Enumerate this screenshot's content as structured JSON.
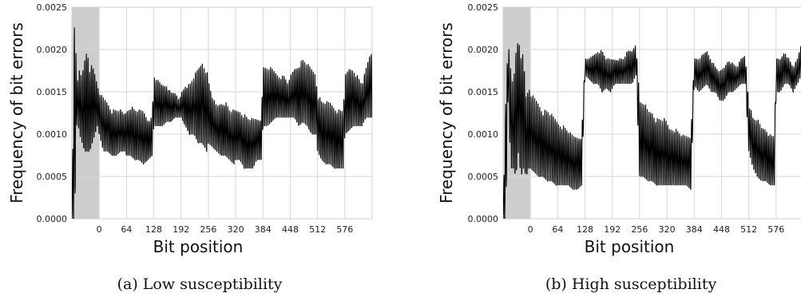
{
  "chart_data": [
    {
      "type": "line",
      "caption": "(a) Low susceptibility",
      "xlabel": "Bit position",
      "ylabel": "Frequency of bit errors",
      "xlim": [
        -64,
        640
      ],
      "ylim": [
        0,
        0.0025
      ],
      "y_ticks": [
        "0.0000",
        "0.0005",
        "0.0010",
        "0.0015",
        "0.0020",
        "0.0025"
      ],
      "x_ticks": [
        "0",
        "64",
        "128",
        "192",
        "256",
        "320",
        "384",
        "448",
        "512",
        "576"
      ],
      "shaded_region": [
        -64,
        0
      ],
      "grid": true,
      "series": [
        {
          "x": [
            -64,
            -58,
            -52,
            -46,
            -40,
            -34,
            -28,
            -22,
            -16,
            -10,
            -4,
            0,
            10,
            20,
            30,
            40,
            50,
            60,
            64,
            74,
            84,
            94,
            104,
            114,
            124,
            128,
            138,
            148,
            158,
            168,
            178,
            188,
            192,
            202,
            212,
            222,
            232,
            242,
            252,
            256,
            266,
            276,
            286,
            296,
            306,
            316,
            320,
            330,
            340,
            350,
            360,
            370,
            380,
            384,
            394,
            404,
            414,
            424,
            434,
            444,
            448,
            458,
            468,
            478,
            488,
            498,
            508,
            512,
            522,
            532,
            542,
            552,
            562,
            572,
            576,
            586,
            596,
            606,
            616,
            626,
            636
          ],
          "upper": [
            0.0001,
            0.0025,
            0.0016,
            0.0018,
            0.0017,
            0.0019,
            0.00205,
            0.0018,
            0.00195,
            0.0017,
            0.0016,
            0.0015,
            0.00145,
            0.0014,
            0.0013,
            0.0013,
            0.0013,
            0.00125,
            0.0013,
            0.00135,
            0.0013,
            0.0013,
            0.0013,
            0.0012,
            0.0012,
            0.0017,
            0.00165,
            0.0016,
            0.0016,
            0.0015,
            0.0015,
            0.0014,
            0.0015,
            0.0016,
            0.0016,
            0.0017,
            0.0018,
            0.0019,
            0.0018,
            0.00165,
            0.00145,
            0.00135,
            0.0014,
            0.0014,
            0.0013,
            0.0013,
            0.0013,
            0.0013,
            0.00125,
            0.0012,
            0.0012,
            0.0012,
            0.0012,
            0.0018,
            0.0018,
            0.0018,
            0.00175,
            0.0017,
            0.0017,
            0.0016,
            0.0017,
            0.0018,
            0.00185,
            0.0019,
            0.00185,
            0.0018,
            0.00175,
            0.0015,
            0.0014,
            0.0014,
            0.0014,
            0.00135,
            0.0013,
            0.0013,
            0.0017,
            0.0018,
            0.0018,
            0.0017,
            0.0016,
            0.0018,
            0.002
          ],
          "lower": [
            0.0,
            0.0,
            0.0012,
            0.001,
            0.0009,
            0.0008,
            0.0008,
            0.0008,
            0.0009,
            0.001,
            0.0011,
            0.001,
            0.0008,
            0.0008,
            0.00075,
            0.00075,
            0.0008,
            0.0008,
            0.00075,
            0.00075,
            0.0007,
            0.0007,
            0.00065,
            0.0007,
            0.00075,
            0.0011,
            0.0011,
            0.0011,
            0.00115,
            0.00115,
            0.0012,
            0.0012,
            0.0012,
            0.0011,
            0.001,
            0.001,
            0.0009,
            0.0009,
            0.0008,
            0.0009,
            0.00085,
            0.0008,
            0.00075,
            0.00075,
            0.0007,
            0.00065,
            0.0007,
            0.0007,
            0.0006,
            0.0006,
            0.0006,
            0.0007,
            0.0007,
            0.0011,
            0.0011,
            0.00115,
            0.0012,
            0.0012,
            0.0012,
            0.0012,
            0.0012,
            0.0012,
            0.0011,
            0.00115,
            0.0011,
            0.001,
            0.001,
            0.0008,
            0.0007,
            0.00065,
            0.00065,
            0.0006,
            0.0006,
            0.0006,
            0.001,
            0.00105,
            0.0011,
            0.0011,
            0.0011,
            0.0012,
            0.0012
          ]
        }
      ]
    },
    {
      "type": "line",
      "caption": "(b) High susceptibility",
      "xlabel": "Bit position",
      "ylabel": "Frequency of bit errors",
      "xlim": [
        -64,
        640
      ],
      "ylim": [
        0,
        0.0025
      ],
      "y_ticks": [
        "0.0000",
        "0.0005",
        "0.0010",
        "0.0015",
        "0.0020",
        "0.0025"
      ],
      "x_ticks": [
        "0",
        "64",
        "128",
        "192",
        "256",
        "320",
        "384",
        "448",
        "512",
        "576"
      ],
      "shaded_region": [
        -64,
        0
      ],
      "grid": true,
      "series": [
        {
          "x": [
            -64,
            -58,
            -52,
            -46,
            -40,
            -34,
            -28,
            -22,
            -16,
            -10,
            -4,
            0,
            10,
            20,
            30,
            40,
            50,
            60,
            70,
            80,
            90,
            100,
            110,
            120,
            128,
            138,
            148,
            158,
            168,
            178,
            188,
            198,
            208,
            218,
            228,
            238,
            248,
            256,
            266,
            276,
            286,
            296,
            306,
            316,
            326,
            336,
            346,
            356,
            366,
            376,
            384,
            394,
            404,
            414,
            424,
            434,
            444,
            454,
            464,
            474,
            484,
            494,
            504,
            512,
            522,
            532,
            542,
            552,
            562,
            572,
            576,
            586,
            596,
            606,
            616,
            626,
            636
          ],
          "upper": [
            0.0001,
            0.0015,
            0.0021,
            0.0018,
            0.0016,
            0.002,
            0.0022,
            0.002,
            0.0021,
            0.0014,
            0.0016,
            0.0015,
            0.00145,
            0.0014,
            0.0013,
            0.0013,
            0.00125,
            0.0012,
            0.00115,
            0.0011,
            0.00105,
            0.001,
            0.001,
            0.001,
            0.0019,
            0.0019,
            0.00195,
            0.002,
            0.002,
            0.0019,
            0.0019,
            0.0019,
            0.0019,
            0.0019,
            0.002,
            0.002,
            0.0021,
            0.0014,
            0.0014,
            0.0013,
            0.0013,
            0.0012,
            0.0012,
            0.0012,
            0.0011,
            0.0011,
            0.00105,
            0.001,
            0.001,
            0.001,
            0.0019,
            0.0019,
            0.00195,
            0.002,
            0.0019,
            0.0018,
            0.00175,
            0.0018,
            0.0019,
            0.00185,
            0.0018,
            0.0019,
            0.00195,
            0.0014,
            0.0012,
            0.0012,
            0.0011,
            0.0011,
            0.001,
            0.001,
            0.0019,
            0.0019,
            0.002,
            0.0019,
            0.0018,
            0.0019,
            0.0021
          ],
          "lower": [
            0.0,
            0.0,
            0.0015,
            0.0006,
            0.0006,
            0.0005,
            0.0008,
            0.0005,
            0.0006,
            0.0005,
            0.0006,
            0.0006,
            0.00055,
            0.0005,
            0.0005,
            0.00045,
            0.00045,
            0.0004,
            0.0004,
            0.0004,
            0.0004,
            0.00035,
            0.00035,
            0.0004,
            0.0017,
            0.00165,
            0.0016,
            0.0016,
            0.0015,
            0.00155,
            0.0015,
            0.0016,
            0.0016,
            0.0016,
            0.0016,
            0.0016,
            0.0017,
            0.0005,
            0.0005,
            0.00045,
            0.00045,
            0.0004,
            0.0004,
            0.0004,
            0.0004,
            0.0004,
            0.0004,
            0.0004,
            0.0004,
            0.00035,
            0.0016,
            0.0015,
            0.00155,
            0.0016,
            0.0015,
            0.0015,
            0.0014,
            0.0014,
            0.0015,
            0.0015,
            0.00155,
            0.0016,
            0.0016,
            0.0008,
            0.0006,
            0.0005,
            0.00045,
            0.00045,
            0.0004,
            0.0004,
            0.0015,
            0.0015,
            0.0016,
            0.0016,
            0.0015,
            0.0016,
            0.0017
          ]
        }
      ]
    }
  ]
}
